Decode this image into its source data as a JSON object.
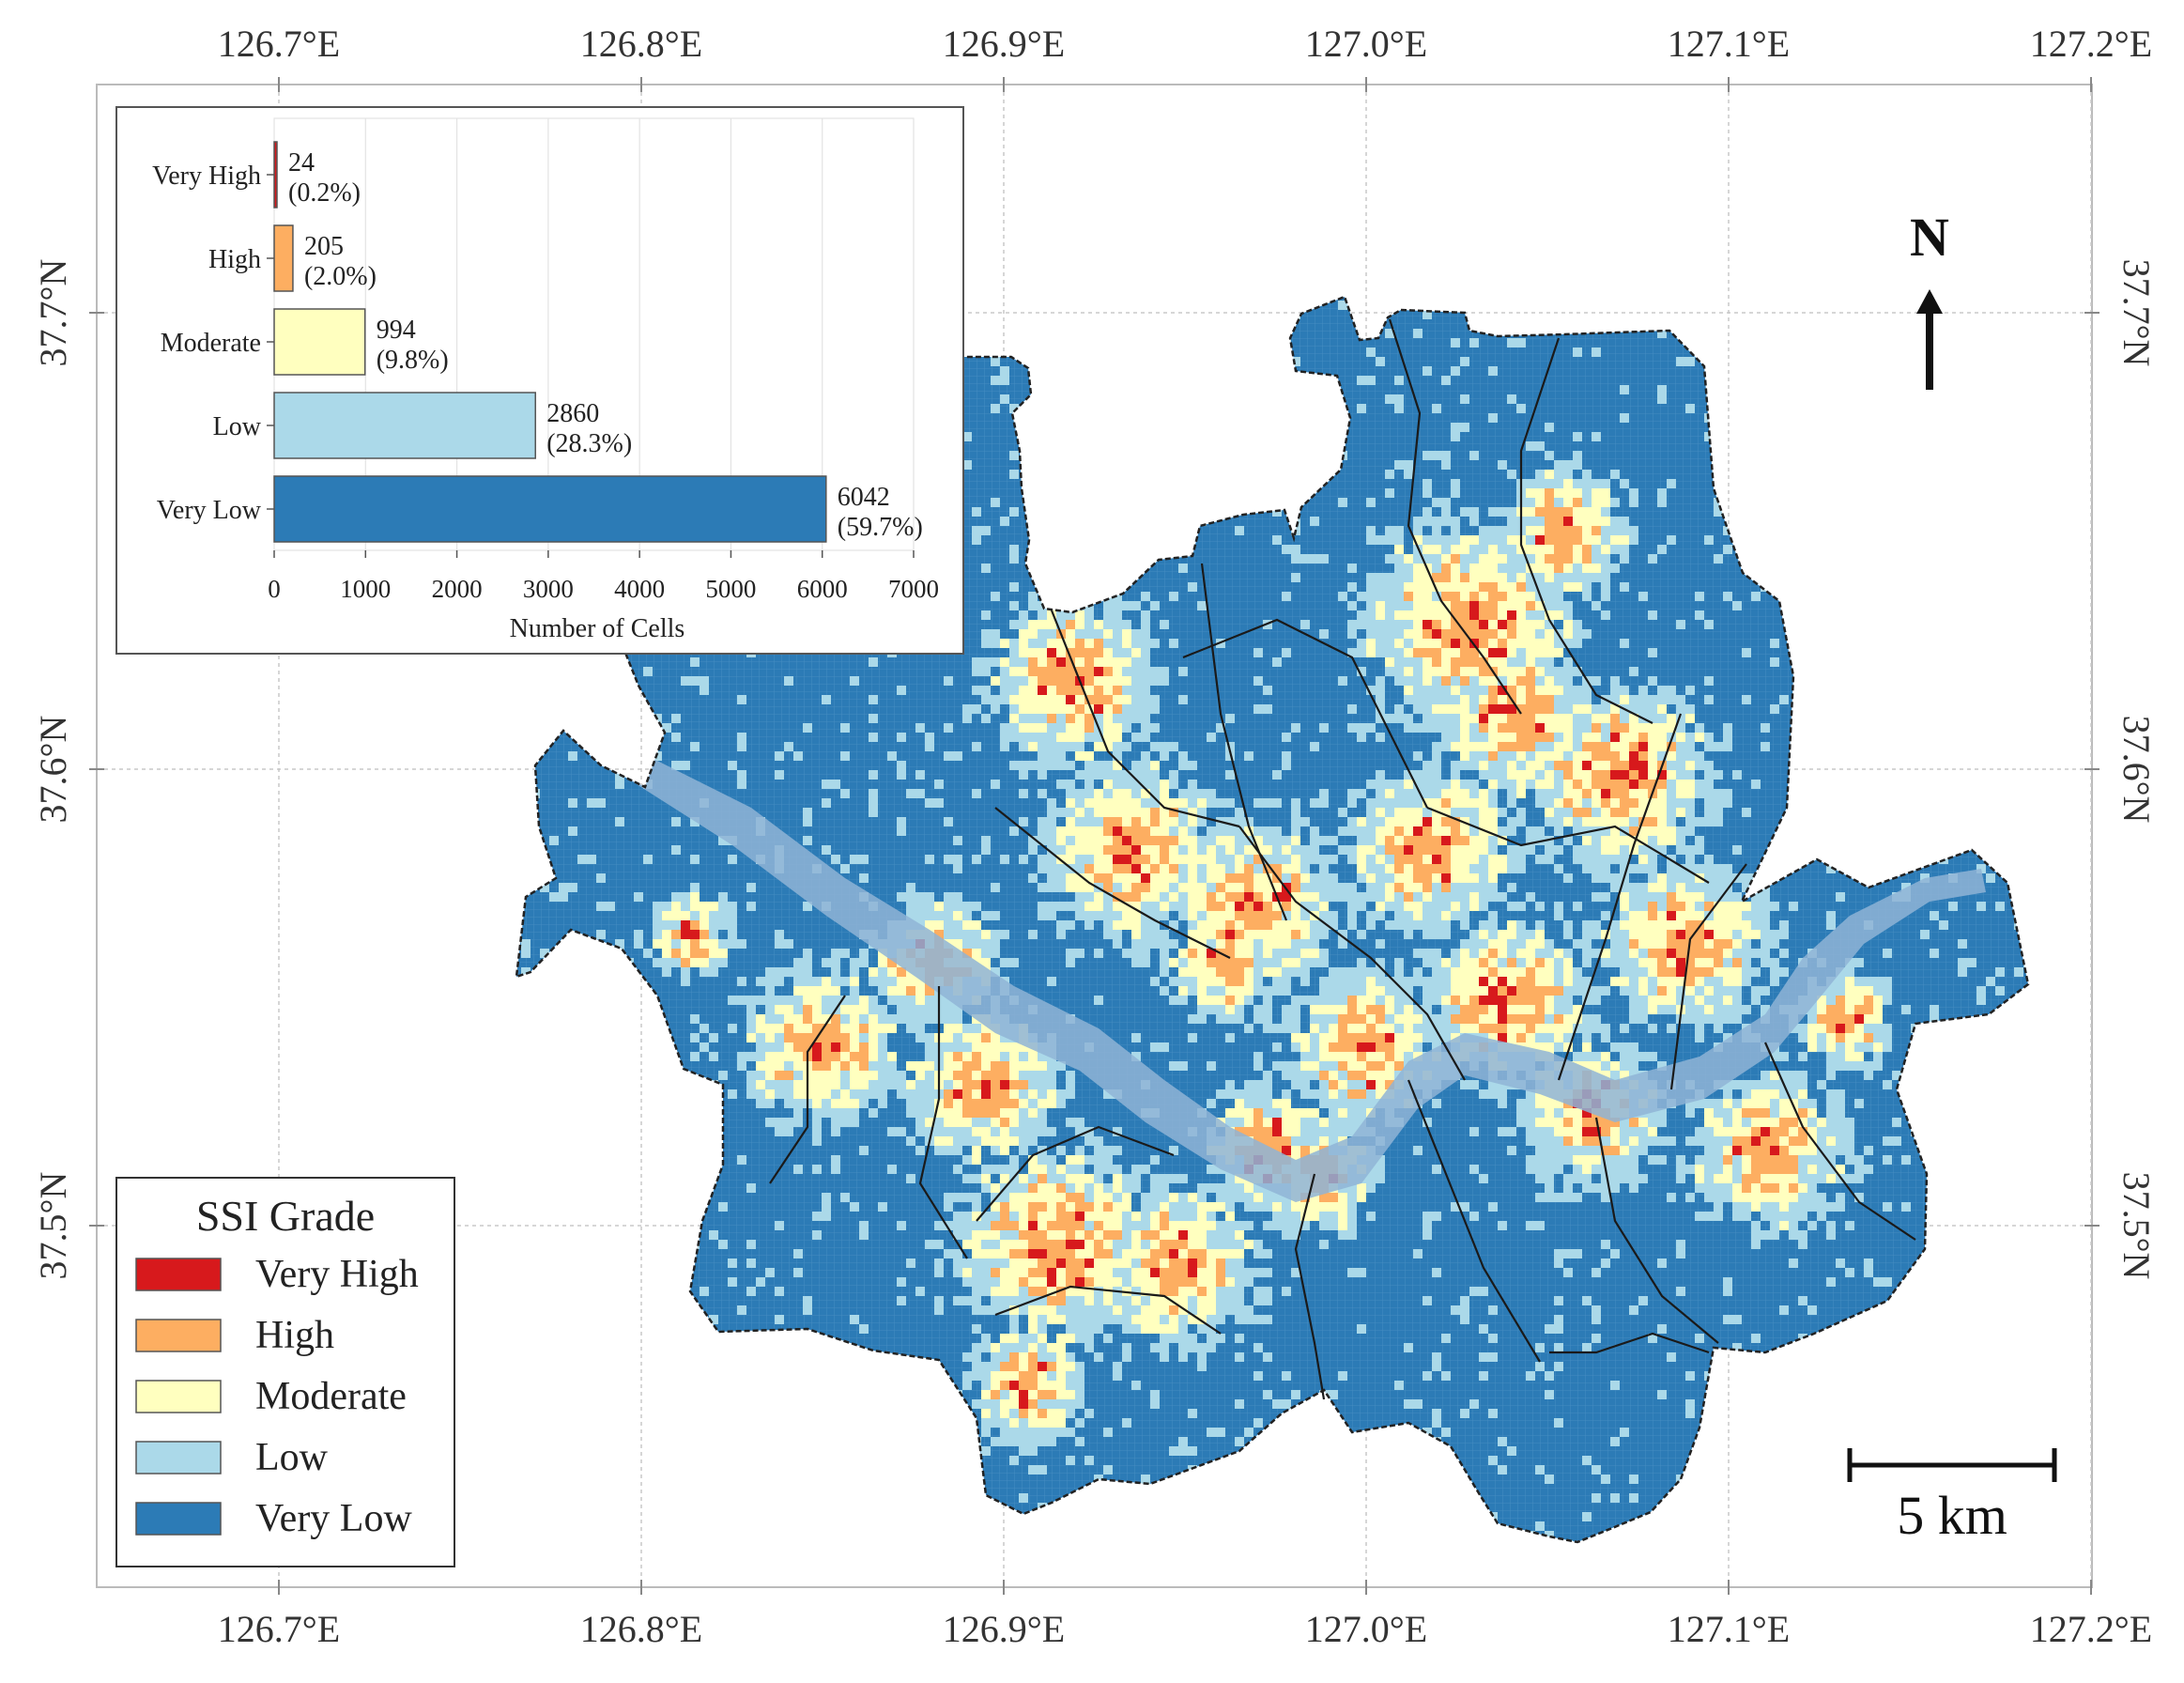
{
  "map": {
    "lon_ticks": [
      {
        "value": 126.7,
        "label": "126.7°E"
      },
      {
        "value": 126.8,
        "label": "126.8°E"
      },
      {
        "value": 126.9,
        "label": "126.9°E"
      },
      {
        "value": 127.0,
        "label": "127.0°E"
      },
      {
        "value": 127.1,
        "label": "127.1°E"
      },
      {
        "value": 127.2,
        "label": "127.2°E"
      }
    ],
    "lat_ticks": [
      {
        "value": 37.7,
        "label": "37.7°N"
      },
      {
        "value": 37.6,
        "label": "37.6°N"
      },
      {
        "value": 37.5,
        "label": "37.5°N"
      }
    ],
    "north_arrow": {
      "label": "N"
    },
    "scale_bar": {
      "label": "5 km"
    },
    "colors": {
      "very_high": "#d7191c",
      "high": "#fdae61",
      "moderate": "#ffffbf",
      "low": "#abd9e9",
      "very_low": "#2c7bb6",
      "river": "#8fb4d6",
      "district_line": "#1a1a1a"
    }
  },
  "legend": {
    "title": "SSI Grade",
    "items": [
      {
        "label": "Very High",
        "color": "#d7191c"
      },
      {
        "label": "High",
        "color": "#fdae61"
      },
      {
        "label": "Moderate",
        "color": "#ffffbf"
      },
      {
        "label": "Low",
        "color": "#abd9e9"
      },
      {
        "label": "Very Low",
        "color": "#2c7bb6"
      }
    ]
  },
  "chart_data": {
    "type": "bar",
    "orientation": "horizontal",
    "categories": [
      "Very High",
      "High",
      "Moderate",
      "Low",
      "Very Low"
    ],
    "values": [
      24,
      205,
      994,
      2860,
      6042
    ],
    "value_labels": [
      "24",
      "205",
      "994",
      "2860",
      "6042"
    ],
    "percent_labels": [
      "(0.2%)",
      "(2.0%)",
      "(9.8%)",
      "(28.3%)",
      "(59.7%)"
    ],
    "colors": [
      "#d7191c",
      "#fdae61",
      "#ffffbf",
      "#abd9e9",
      "#2c7bb6"
    ],
    "xlabel": "Number of Cells",
    "xlim": [
      0,
      7000
    ],
    "xticks": [
      "0",
      "1000",
      "2000",
      "3000",
      "4000",
      "5000",
      "6000",
      "7000"
    ],
    "grid": true
  }
}
